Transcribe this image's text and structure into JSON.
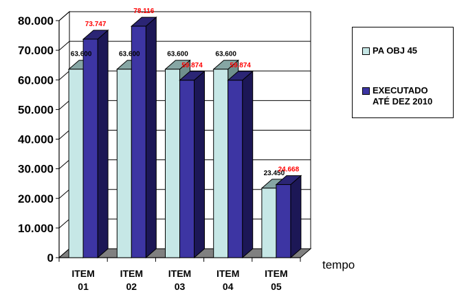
{
  "chart_data": {
    "type": "bar",
    "categories": [
      "ITEM\n01",
      "ITEM\n02",
      "ITEM\n03",
      "ITEM\n04",
      "ITEM\n05"
    ],
    "series": [
      {
        "name": "PA OBJ 45",
        "values": [
          63600,
          63600,
          63600,
          63600,
          23450
        ],
        "labels": [
          "63.600",
          "63.600",
          "63.600",
          "63.600",
          "23.450"
        ],
        "color": "#c6e7e6",
        "label_color": "#000000"
      },
      {
        "name": "EXECUTADO\nATÉ DEZ 2010",
        "values": [
          73747,
          78116,
          59874,
          59874,
          24668
        ],
        "labels": [
          "73.747",
          "78.116",
          "59.874",
          "59.874",
          "24.668"
        ],
        "color": "#3d35a3",
        "label_color": "#ff0000"
      }
    ],
    "yticks": [
      "0",
      "10.000",
      "20.000",
      "30.000",
      "40.000",
      "50.000",
      "60.000",
      "70.000",
      "80.000"
    ],
    "ylim": [
      0,
      80000
    ],
    "xlabel": "tempo",
    "grid": true,
    "legend_position": "right",
    "style": "3d-clustered-columns"
  }
}
